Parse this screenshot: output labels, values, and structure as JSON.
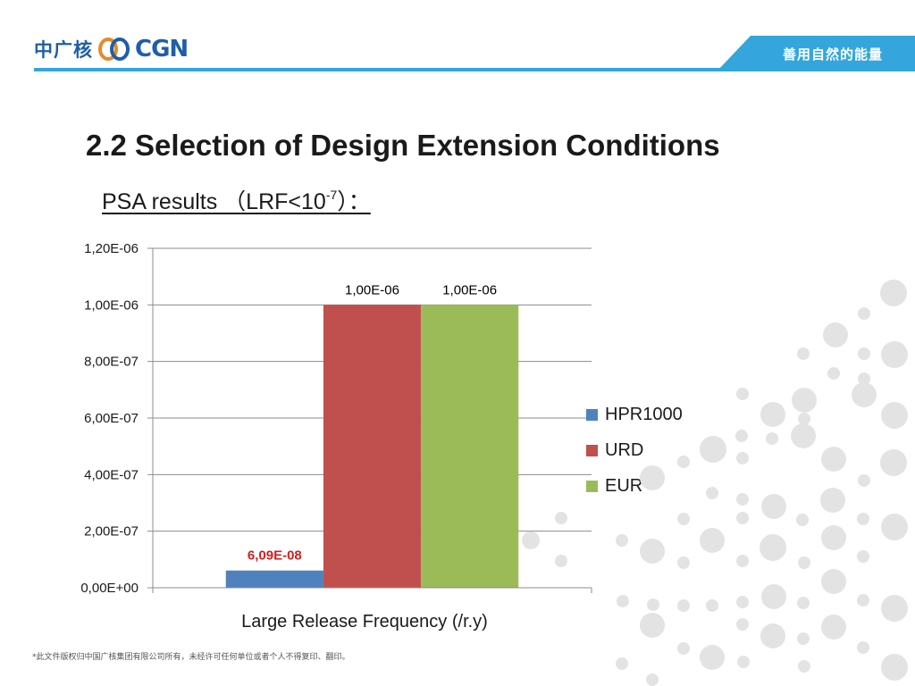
{
  "header": {
    "logo": {
      "cn_text": "中广核",
      "en_text": "CGN"
    },
    "tagline": "善用自然的能量",
    "colors": {
      "brand": "#1f5ea8",
      "accent": "#34a6dc"
    }
  },
  "slide": {
    "title": "2.2 Selection of Design Extension Conditions",
    "subtitle": {
      "prefix": "PSA results （LRF<10",
      "exponent": "-7",
      "suffix": "）："
    }
  },
  "chart_data": {
    "type": "bar",
    "title": "",
    "xlabel": "Large Release Frequency (/r.y)",
    "ylabel": "",
    "categories": [
      "Large Release Frequency (/r.y)"
    ],
    "ylim": [
      0,
      1.2e-06
    ],
    "yticks": [
      0,
      2e-07,
      4e-07,
      6e-07,
      8e-07,
      1e-06,
      1.2e-06
    ],
    "ytick_labels": [
      "0,00E+00",
      "2,00E-07",
      "4,00E-07",
      "6,00E-07",
      "8,00E-07",
      "1,00E-06",
      "1,20E-06"
    ],
    "grid": true,
    "legend_position": "right",
    "series": [
      {
        "name": "HPR1000",
        "values": [
          6.09e-08
        ],
        "label": "6,09E-08",
        "color": "#4f81bd",
        "label_color": "#d21f1f",
        "label_bold": true
      },
      {
        "name": "URD",
        "values": [
          1e-06
        ],
        "label": "1,00E-06",
        "color": "#c0504d",
        "label_color": "#000000",
        "label_bold": false
      },
      {
        "name": "EUR",
        "values": [
          1e-06
        ],
        "label": "1,00E-06",
        "color": "#9bbb59",
        "label_color": "#000000",
        "label_bold": false
      }
    ]
  },
  "footer": {
    "copyright": "*此文件版权归中国广核集团有限公司所有，未经许可任何单位或者个人不得复印、翻印。"
  }
}
